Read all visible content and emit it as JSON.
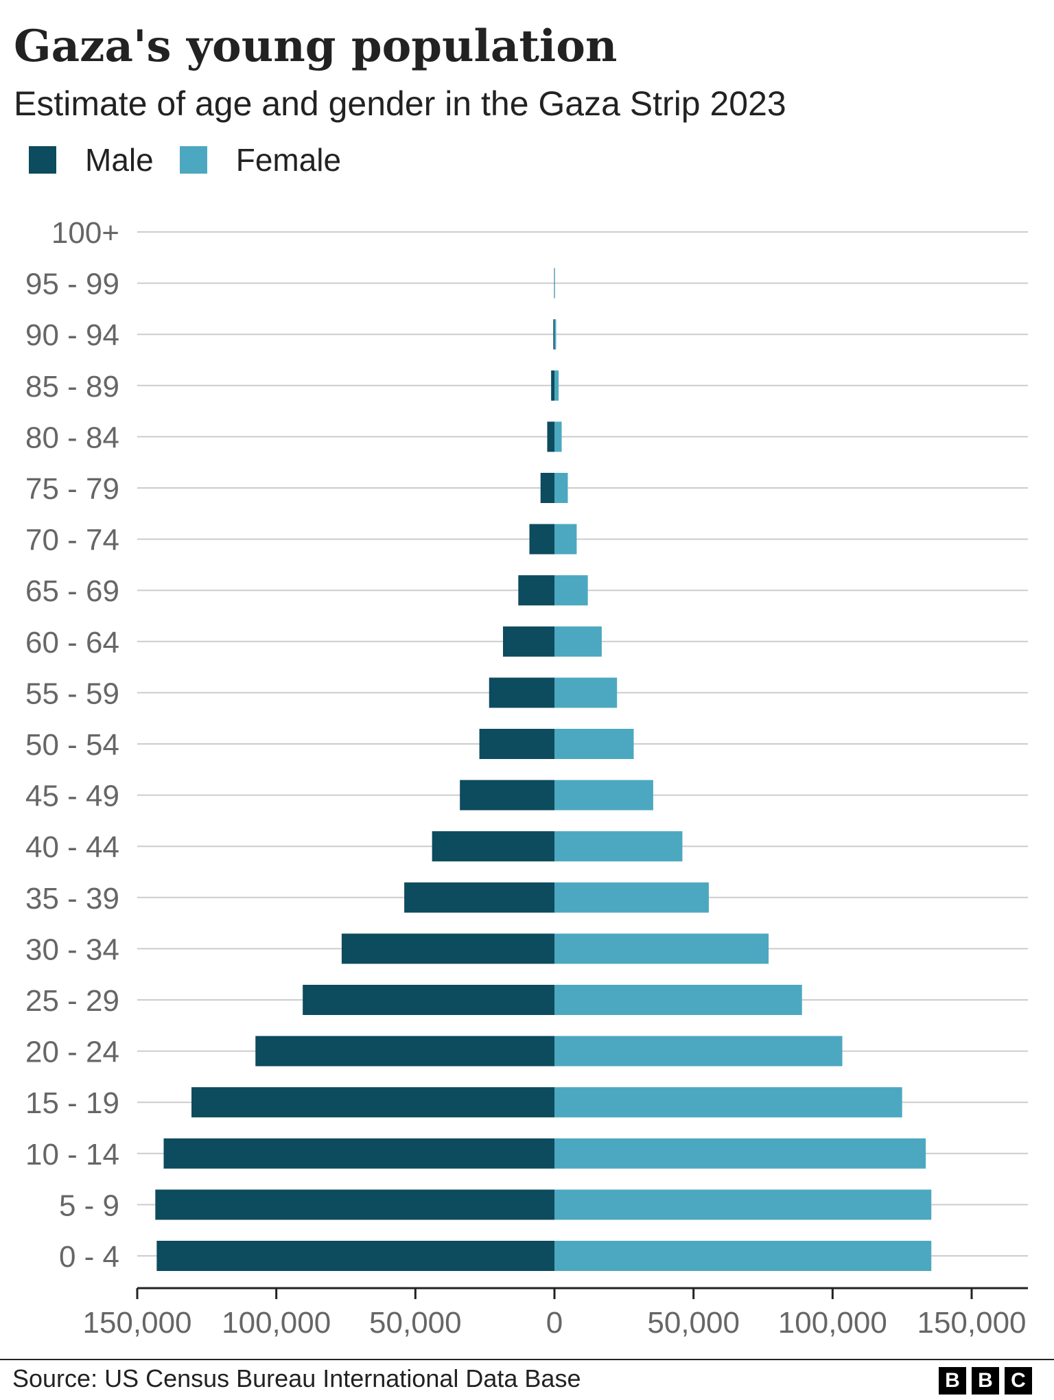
{
  "chart_data": {
    "type": "bar",
    "title": "Gaza's young population",
    "subtitle": "Estimate of age and gender in the Gaza Strip 2023",
    "orientation": "horizontal-population-pyramid",
    "categories": [
      "100+",
      "95 - 99",
      "90 - 94",
      "85 - 89",
      "80 - 84",
      "75 - 79",
      "70 - 74",
      "65 - 69",
      "60 - 64",
      "55 - 59",
      "50 - 54",
      "45 - 49",
      "40 - 44",
      "35 - 39",
      "30 - 34",
      "25 - 29",
      "20 - 24",
      "15 - 19",
      "10 - 14",
      "5 - 9",
      "0 - 4"
    ],
    "series": [
      {
        "name": "Male",
        "color": "#0d4b5e",
        "side": "left",
        "values": [
          0,
          100,
          400,
          1200,
          2600,
          5000,
          9000,
          13000,
          18500,
          23500,
          27000,
          34000,
          44000,
          54000,
          76500,
          90500,
          107500,
          130500,
          140500,
          143500,
          143000
        ]
      },
      {
        "name": "Female",
        "color": "#4ca8c0",
        "side": "right",
        "values": [
          0,
          200,
          600,
          1500,
          2600,
          4800,
          8000,
          12000,
          17000,
          22500,
          28500,
          35500,
          46000,
          55500,
          77000,
          89000,
          103500,
          125000,
          133500,
          135500,
          135500
        ]
      }
    ],
    "x_ticks": [
      "150,000",
      "100,000",
      "50,000",
      "0",
      "50,000",
      "100,000",
      "150,000"
    ],
    "x_tick_values": [
      -150000,
      -100000,
      -50000,
      0,
      50000,
      100000,
      150000
    ],
    "xlim": [
      -150000,
      170000
    ],
    "grid": true,
    "legend_position": "top-left",
    "xlabel": "",
    "ylabel": ""
  },
  "legend": {
    "male_label": "Male",
    "female_label": "Female",
    "male_color": "#0d4b5e",
    "female_color": "#4ca8c0"
  },
  "footer": {
    "source": "Source: US Census Bureau International Data Base",
    "logo": [
      "B",
      "B",
      "C"
    ]
  }
}
